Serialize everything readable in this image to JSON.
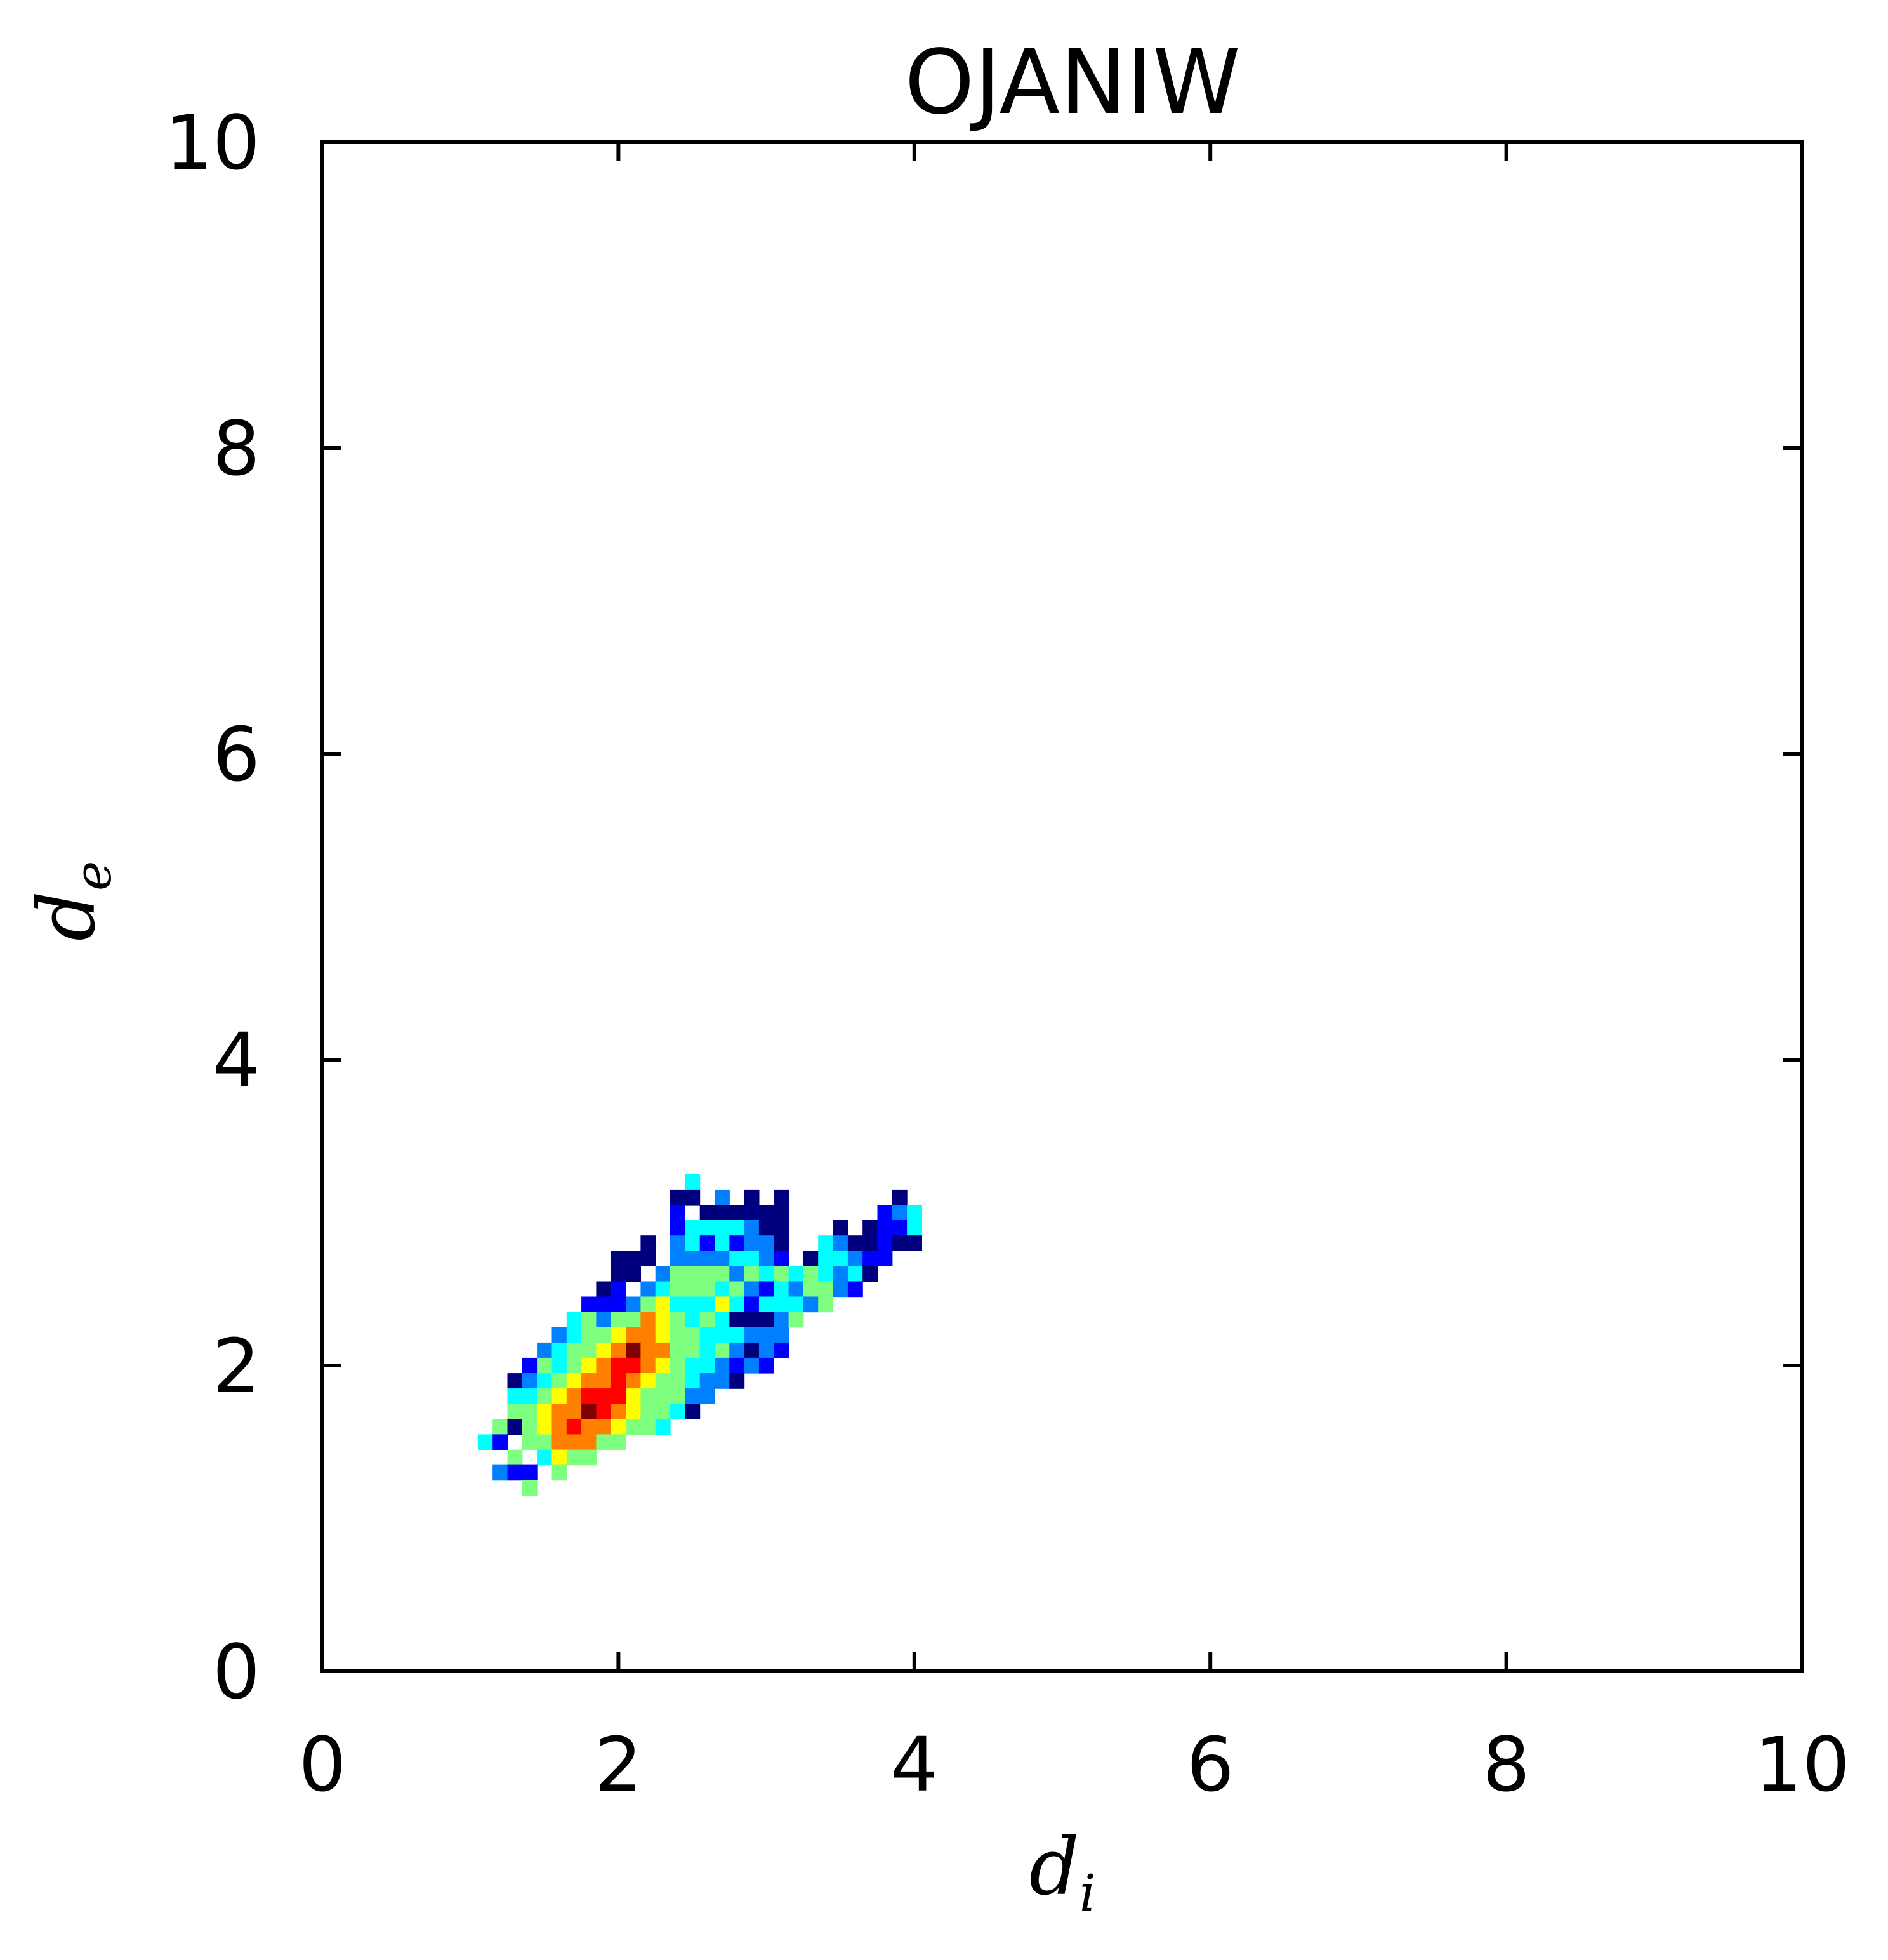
{
  "chart_data": {
    "type": "heatmap",
    "title": "OJANIW",
    "xlabel": {
      "base": "d",
      "subscript": "i"
    },
    "ylabel": {
      "base": "d",
      "subscript": "e"
    },
    "xlim": [
      0,
      10
    ],
    "ylim": [
      0,
      10
    ],
    "xticks": [
      "0",
      "2",
      "4",
      "6",
      "8",
      "10"
    ],
    "yticks": [
      "0",
      "2",
      "4",
      "6",
      "8",
      "10"
    ],
    "grid": false,
    "colormap": "jet",
    "bin_size": 0.1,
    "colorscale": [
      "#00007f",
      "#0000ff",
      "#007fff",
      "#00ffff",
      "#7fff7f",
      "#ffff00",
      "#ff7f00",
      "#ff0000",
      "#7f0000"
    ],
    "cells": [
      {
        "x": 2.5,
        "y": 3.2,
        "v": 0.4
      },
      {
        "x": 2.4,
        "y": 3.1,
        "v": 0.05
      },
      {
        "x": 2.5,
        "y": 3.1,
        "v": 0.05
      },
      {
        "x": 2.7,
        "y": 3.1,
        "v": 0.25
      },
      {
        "x": 2.9,
        "y": 3.1,
        "v": 0.05
      },
      {
        "x": 3.1,
        "y": 3.1,
        "v": 0.05
      },
      {
        "x": 3.9,
        "y": 3.1,
        "v": 0.05
      },
      {
        "x": 2.4,
        "y": 3.0,
        "v": 0.15
      },
      {
        "x": 2.6,
        "y": 3.0,
        "v": 0.05
      },
      {
        "x": 2.7,
        "y": 3.0,
        "v": 0.05
      },
      {
        "x": 2.8,
        "y": 3.0,
        "v": 0.05
      },
      {
        "x": 2.9,
        "y": 3.0,
        "v": 0.05
      },
      {
        "x": 3.0,
        "y": 3.0,
        "v": 0.05
      },
      {
        "x": 3.1,
        "y": 3.0,
        "v": 0.05
      },
      {
        "x": 3.8,
        "y": 3.0,
        "v": 0.15
      },
      {
        "x": 3.9,
        "y": 3.0,
        "v": 0.25
      },
      {
        "x": 4.0,
        "y": 3.0,
        "v": 0.4
      },
      {
        "x": 2.4,
        "y": 2.9,
        "v": 0.15
      },
      {
        "x": 2.5,
        "y": 2.9,
        "v": 0.4
      },
      {
        "x": 2.6,
        "y": 2.9,
        "v": 0.35
      },
      {
        "x": 2.7,
        "y": 2.9,
        "v": 0.35
      },
      {
        "x": 2.8,
        "y": 2.9,
        "v": 0.4
      },
      {
        "x": 2.9,
        "y": 2.9,
        "v": 0.2
      },
      {
        "x": 3.0,
        "y": 2.9,
        "v": 0.05
      },
      {
        "x": 3.1,
        "y": 2.9,
        "v": 0.05
      },
      {
        "x": 3.5,
        "y": 2.9,
        "v": 0.05
      },
      {
        "x": 3.7,
        "y": 2.9,
        "v": 0.05
      },
      {
        "x": 3.8,
        "y": 2.9,
        "v": 0.15
      },
      {
        "x": 3.9,
        "y": 2.9,
        "v": 0.15
      },
      {
        "x": 4.0,
        "y": 2.9,
        "v": 0.4
      },
      {
        "x": 2.2,
        "y": 2.8,
        "v": 0.05
      },
      {
        "x": 2.4,
        "y": 2.8,
        "v": 0.2
      },
      {
        "x": 2.5,
        "y": 2.8,
        "v": 0.4
      },
      {
        "x": 2.6,
        "y": 2.8,
        "v": 0.15
      },
      {
        "x": 2.7,
        "y": 2.8,
        "v": 0.35
      },
      {
        "x": 2.8,
        "y": 2.8,
        "v": 0.15
      },
      {
        "x": 2.9,
        "y": 2.8,
        "v": 0.3
      },
      {
        "x": 3.0,
        "y": 2.8,
        "v": 0.2
      },
      {
        "x": 3.1,
        "y": 2.8,
        "v": 0.05
      },
      {
        "x": 3.4,
        "y": 2.8,
        "v": 0.35
      },
      {
        "x": 3.5,
        "y": 2.8,
        "v": 0.2
      },
      {
        "x": 3.6,
        "y": 2.8,
        "v": 0.05
      },
      {
        "x": 3.7,
        "y": 2.8,
        "v": 0.05
      },
      {
        "x": 3.8,
        "y": 2.8,
        "v": 0.15
      },
      {
        "x": 3.9,
        "y": 2.8,
        "v": 0.05
      },
      {
        "x": 4.0,
        "y": 2.8,
        "v": 0.05
      },
      {
        "x": 2.0,
        "y": 2.7,
        "v": 0.05
      },
      {
        "x": 2.1,
        "y": 2.7,
        "v": 0.05
      },
      {
        "x": 2.2,
        "y": 2.7,
        "v": 0.05
      },
      {
        "x": 2.4,
        "y": 2.7,
        "v": 0.25
      },
      {
        "x": 2.5,
        "y": 2.7,
        "v": 0.3
      },
      {
        "x": 2.6,
        "y": 2.7,
        "v": 0.3
      },
      {
        "x": 2.7,
        "y": 2.7,
        "v": 0.25
      },
      {
        "x": 2.8,
        "y": 2.7,
        "v": 0.4
      },
      {
        "x": 2.9,
        "y": 2.7,
        "v": 0.35
      },
      {
        "x": 3.0,
        "y": 2.7,
        "v": 0.25
      },
      {
        "x": 3.1,
        "y": 2.7,
        "v": 0.15
      },
      {
        "x": 3.3,
        "y": 2.7,
        "v": 0.05
      },
      {
        "x": 3.4,
        "y": 2.7,
        "v": 0.4
      },
      {
        "x": 3.5,
        "y": 2.7,
        "v": 0.35
      },
      {
        "x": 3.6,
        "y": 2.7,
        "v": 0.25
      },
      {
        "x": 3.7,
        "y": 2.7,
        "v": 0.15
      },
      {
        "x": 3.8,
        "y": 2.7,
        "v": 0.15
      },
      {
        "x": 2.0,
        "y": 2.6,
        "v": 0.05
      },
      {
        "x": 2.1,
        "y": 2.6,
        "v": 0.05
      },
      {
        "x": 2.3,
        "y": 2.6,
        "v": 0.25
      },
      {
        "x": 2.4,
        "y": 2.6,
        "v": 0.45
      },
      {
        "x": 2.5,
        "y": 2.6,
        "v": 0.5
      },
      {
        "x": 2.6,
        "y": 2.6,
        "v": 0.45
      },
      {
        "x": 2.7,
        "y": 2.6,
        "v": 0.5
      },
      {
        "x": 2.8,
        "y": 2.6,
        "v": 0.3
      },
      {
        "x": 2.9,
        "y": 2.6,
        "v": 0.45
      },
      {
        "x": 3.0,
        "y": 2.6,
        "v": 0.35
      },
      {
        "x": 3.1,
        "y": 2.6,
        "v": 0.45
      },
      {
        "x": 3.2,
        "y": 2.6,
        "v": 0.4
      },
      {
        "x": 3.3,
        "y": 2.6,
        "v": 0.45
      },
      {
        "x": 3.4,
        "y": 2.6,
        "v": 0.35
      },
      {
        "x": 3.5,
        "y": 2.6,
        "v": 0.3
      },
      {
        "x": 3.6,
        "y": 2.6,
        "v": 0.35
      },
      {
        "x": 3.7,
        "y": 2.6,
        "v": 0.05
      },
      {
        "x": 1.9,
        "y": 2.5,
        "v": 0.05
      },
      {
        "x": 2.0,
        "y": 2.5,
        "v": 0.15
      },
      {
        "x": 2.2,
        "y": 2.5,
        "v": 0.3
      },
      {
        "x": 2.3,
        "y": 2.5,
        "v": 0.35
      },
      {
        "x": 2.4,
        "y": 2.5,
        "v": 0.45
      },
      {
        "x": 2.5,
        "y": 2.5,
        "v": 0.55
      },
      {
        "x": 2.6,
        "y": 2.5,
        "v": 0.5
      },
      {
        "x": 2.7,
        "y": 2.5,
        "v": 0.4
      },
      {
        "x": 2.8,
        "y": 2.5,
        "v": 0.5
      },
      {
        "x": 2.9,
        "y": 2.5,
        "v": 0.3
      },
      {
        "x": 3.0,
        "y": 2.5,
        "v": 0.15
      },
      {
        "x": 3.1,
        "y": 2.5,
        "v": 0.35
      },
      {
        "x": 3.2,
        "y": 2.5,
        "v": 0.3
      },
      {
        "x": 3.3,
        "y": 2.5,
        "v": 0.5
      },
      {
        "x": 3.4,
        "y": 2.5,
        "v": 0.45
      },
      {
        "x": 3.5,
        "y": 2.5,
        "v": 0.25
      },
      {
        "x": 3.6,
        "y": 2.5,
        "v": 0.15
      },
      {
        "x": 1.8,
        "y": 2.4,
        "v": 0.15
      },
      {
        "x": 1.9,
        "y": 2.4,
        "v": 0.15
      },
      {
        "x": 2.0,
        "y": 2.4,
        "v": 0.15
      },
      {
        "x": 2.1,
        "y": 2.4,
        "v": 0.3
      },
      {
        "x": 2.2,
        "y": 2.4,
        "v": 0.45
      },
      {
        "x": 2.3,
        "y": 2.4,
        "v": 0.6
      },
      {
        "x": 2.4,
        "y": 2.4,
        "v": 0.4
      },
      {
        "x": 2.5,
        "y": 2.4,
        "v": 0.4
      },
      {
        "x": 2.6,
        "y": 2.4,
        "v": 0.35
      },
      {
        "x": 2.7,
        "y": 2.4,
        "v": 0.6
      },
      {
        "x": 2.8,
        "y": 2.4,
        "v": 0.4
      },
      {
        "x": 2.9,
        "y": 2.4,
        "v": 0.15
      },
      {
        "x": 3.0,
        "y": 2.4,
        "v": 0.35
      },
      {
        "x": 3.1,
        "y": 2.4,
        "v": 0.4
      },
      {
        "x": 3.2,
        "y": 2.4,
        "v": 0.35
      },
      {
        "x": 3.3,
        "y": 2.4,
        "v": 0.25
      },
      {
        "x": 3.4,
        "y": 2.4,
        "v": 0.45
      },
      {
        "x": 1.7,
        "y": 2.3,
        "v": 0.35
      },
      {
        "x": 1.8,
        "y": 2.3,
        "v": 0.45
      },
      {
        "x": 1.9,
        "y": 2.3,
        "v": 0.25
      },
      {
        "x": 2.0,
        "y": 2.3,
        "v": 0.5
      },
      {
        "x": 2.1,
        "y": 2.3,
        "v": 0.55
      },
      {
        "x": 2.2,
        "y": 2.3,
        "v": 0.7
      },
      {
        "x": 2.3,
        "y": 2.3,
        "v": 0.6
      },
      {
        "x": 2.4,
        "y": 2.3,
        "v": 0.45
      },
      {
        "x": 2.5,
        "y": 2.3,
        "v": 0.4
      },
      {
        "x": 2.6,
        "y": 2.3,
        "v": 0.45
      },
      {
        "x": 2.7,
        "y": 2.3,
        "v": 0.35
      },
      {
        "x": 2.8,
        "y": 2.3,
        "v": 0.05
      },
      {
        "x": 2.9,
        "y": 2.3,
        "v": 0.05
      },
      {
        "x": 3.0,
        "y": 2.3,
        "v": 0.05
      },
      {
        "x": 3.1,
        "y": 2.3,
        "v": 0.25
      },
      {
        "x": 3.2,
        "y": 2.3,
        "v": 0.45
      },
      {
        "x": 1.6,
        "y": 2.2,
        "v": 0.25
      },
      {
        "x": 1.7,
        "y": 2.2,
        "v": 0.35
      },
      {
        "x": 1.8,
        "y": 2.2,
        "v": 0.45
      },
      {
        "x": 1.9,
        "y": 2.2,
        "v": 0.5
      },
      {
        "x": 2.0,
        "y": 2.2,
        "v": 0.65
      },
      {
        "x": 2.1,
        "y": 2.2,
        "v": 0.8
      },
      {
        "x": 2.2,
        "y": 2.2,
        "v": 0.75
      },
      {
        "x": 2.3,
        "y": 2.2,
        "v": 0.6
      },
      {
        "x": 2.4,
        "y": 2.2,
        "v": 0.55
      },
      {
        "x": 2.5,
        "y": 2.2,
        "v": 0.45
      },
      {
        "x": 2.6,
        "y": 2.2,
        "v": 0.35
      },
      {
        "x": 2.7,
        "y": 2.2,
        "v": 0.35
      },
      {
        "x": 2.8,
        "y": 2.2,
        "v": 0.35
      },
      {
        "x": 2.9,
        "y": 2.2,
        "v": 0.2
      },
      {
        "x": 3.0,
        "y": 2.2,
        "v": 0.25
      },
      {
        "x": 3.1,
        "y": 2.2,
        "v": 0.2
      },
      {
        "x": 1.5,
        "y": 2.1,
        "v": 0.2
      },
      {
        "x": 1.6,
        "y": 2.1,
        "v": 0.35
      },
      {
        "x": 1.7,
        "y": 2.1,
        "v": 0.5
      },
      {
        "x": 1.8,
        "y": 2.1,
        "v": 0.55
      },
      {
        "x": 1.9,
        "y": 2.1,
        "v": 0.65
      },
      {
        "x": 2.0,
        "y": 2.1,
        "v": 0.75
      },
      {
        "x": 2.1,
        "y": 2.1,
        "v": 0.95
      },
      {
        "x": 2.2,
        "y": 2.1,
        "v": 0.8
      },
      {
        "x": 2.3,
        "y": 2.1,
        "v": 0.7
      },
      {
        "x": 2.4,
        "y": 2.1,
        "v": 0.55
      },
      {
        "x": 2.5,
        "y": 2.1,
        "v": 0.45
      },
      {
        "x": 2.6,
        "y": 2.1,
        "v": 0.35
      },
      {
        "x": 2.7,
        "y": 2.1,
        "v": 0.5
      },
      {
        "x": 2.8,
        "y": 2.1,
        "v": 0.2
      },
      {
        "x": 2.9,
        "y": 2.1,
        "v": 0.05
      },
      {
        "x": 3.0,
        "y": 2.1,
        "v": 0.2
      },
      {
        "x": 3.1,
        "y": 2.1,
        "v": 0.15
      },
      {
        "x": 1.4,
        "y": 2.0,
        "v": 0.15
      },
      {
        "x": 1.5,
        "y": 2.0,
        "v": 0.45
      },
      {
        "x": 1.6,
        "y": 2.0,
        "v": 0.35
      },
      {
        "x": 1.7,
        "y": 2.0,
        "v": 0.55
      },
      {
        "x": 1.8,
        "y": 2.0,
        "v": 0.65
      },
      {
        "x": 1.9,
        "y": 2.0,
        "v": 0.75
      },
      {
        "x": 2.0,
        "y": 2.0,
        "v": 0.85
      },
      {
        "x": 2.1,
        "y": 2.0,
        "v": 0.9
      },
      {
        "x": 2.2,
        "y": 2.0,
        "v": 0.7
      },
      {
        "x": 2.3,
        "y": 2.0,
        "v": 0.6
      },
      {
        "x": 2.4,
        "y": 2.0,
        "v": 0.45
      },
      {
        "x": 2.5,
        "y": 2.0,
        "v": 0.4
      },
      {
        "x": 2.6,
        "y": 2.0,
        "v": 0.35
      },
      {
        "x": 2.7,
        "y": 2.0,
        "v": 0.3
      },
      {
        "x": 2.8,
        "y": 2.0,
        "v": 0.15
      },
      {
        "x": 2.9,
        "y": 2.0,
        "v": 0.25
      },
      {
        "x": 3.0,
        "y": 2.0,
        "v": 0.15
      },
      {
        "x": 1.3,
        "y": 1.9,
        "v": 0.05
      },
      {
        "x": 1.4,
        "y": 1.9,
        "v": 0.3
      },
      {
        "x": 1.5,
        "y": 1.9,
        "v": 0.4
      },
      {
        "x": 1.6,
        "y": 1.9,
        "v": 0.45
      },
      {
        "x": 1.7,
        "y": 1.9,
        "v": 0.6
      },
      {
        "x": 1.8,
        "y": 1.9,
        "v": 0.75
      },
      {
        "x": 1.9,
        "y": 1.9,
        "v": 0.8
      },
      {
        "x": 2.0,
        "y": 1.9,
        "v": 0.9
      },
      {
        "x": 2.1,
        "y": 1.9,
        "v": 0.8
      },
      {
        "x": 2.2,
        "y": 1.9,
        "v": 0.65
      },
      {
        "x": 2.3,
        "y": 1.9,
        "v": 0.5
      },
      {
        "x": 2.4,
        "y": 1.9,
        "v": 0.45
      },
      {
        "x": 2.5,
        "y": 1.9,
        "v": 0.4
      },
      {
        "x": 2.6,
        "y": 1.9,
        "v": 0.3
      },
      {
        "x": 2.7,
        "y": 1.9,
        "v": 0.2
      },
      {
        "x": 2.8,
        "y": 1.9,
        "v": 0.05
      },
      {
        "x": 1.3,
        "y": 1.8,
        "v": 0.4
      },
      {
        "x": 1.4,
        "y": 1.8,
        "v": 0.4
      },
      {
        "x": 1.5,
        "y": 1.8,
        "v": 0.5
      },
      {
        "x": 1.6,
        "y": 1.8,
        "v": 0.6
      },
      {
        "x": 1.7,
        "y": 1.8,
        "v": 0.75
      },
      {
        "x": 1.8,
        "y": 1.8,
        "v": 0.85
      },
      {
        "x": 1.9,
        "y": 1.8,
        "v": 0.9
      },
      {
        "x": 2.0,
        "y": 1.8,
        "v": 0.85
      },
      {
        "x": 2.1,
        "y": 1.8,
        "v": 0.65
      },
      {
        "x": 2.2,
        "y": 1.8,
        "v": 0.55
      },
      {
        "x": 2.3,
        "y": 1.8,
        "v": 0.5
      },
      {
        "x": 2.4,
        "y": 1.8,
        "v": 0.45
      },
      {
        "x": 2.5,
        "y": 1.8,
        "v": 0.3
      },
      {
        "x": 2.6,
        "y": 1.8,
        "v": 0.25
      },
      {
        "x": 1.3,
        "y": 1.7,
        "v": 0.45
      },
      {
        "x": 1.4,
        "y": 1.7,
        "v": 0.45
      },
      {
        "x": 1.5,
        "y": 1.7,
        "v": 0.6
      },
      {
        "x": 1.6,
        "y": 1.7,
        "v": 0.7
      },
      {
        "x": 1.7,
        "y": 1.7,
        "v": 0.8
      },
      {
        "x": 1.8,
        "y": 1.7,
        "v": 0.95
      },
      {
        "x": 1.9,
        "y": 1.7,
        "v": 0.9
      },
      {
        "x": 2.0,
        "y": 1.7,
        "v": 0.7
      },
      {
        "x": 2.1,
        "y": 1.7,
        "v": 0.6
      },
      {
        "x": 2.2,
        "y": 1.7,
        "v": 0.5
      },
      {
        "x": 2.3,
        "y": 1.7,
        "v": 0.45
      },
      {
        "x": 2.4,
        "y": 1.7,
        "v": 0.35
      },
      {
        "x": 2.5,
        "y": 1.7,
        "v": 0.05
      },
      {
        "x": 1.2,
        "y": 1.6,
        "v": 0.45
      },
      {
        "x": 1.3,
        "y": 1.6,
        "v": 0.05
      },
      {
        "x": 1.4,
        "y": 1.6,
        "v": 0.55
      },
      {
        "x": 1.5,
        "y": 1.6,
        "v": 0.65
      },
      {
        "x": 1.6,
        "y": 1.6,
        "v": 0.75
      },
      {
        "x": 1.7,
        "y": 1.6,
        "v": 0.85
      },
      {
        "x": 1.8,
        "y": 1.6,
        "v": 0.8
      },
      {
        "x": 1.9,
        "y": 1.6,
        "v": 0.75
      },
      {
        "x": 2.0,
        "y": 1.6,
        "v": 0.6
      },
      {
        "x": 2.1,
        "y": 1.6,
        "v": 0.5
      },
      {
        "x": 2.2,
        "y": 1.6,
        "v": 0.45
      },
      {
        "x": 2.3,
        "y": 1.6,
        "v": 0.35
      },
      {
        "x": 1.1,
        "y": 1.5,
        "v": 0.35
      },
      {
        "x": 1.2,
        "y": 1.5,
        "v": 0.15
      },
      {
        "x": 1.4,
        "y": 1.5,
        "v": 0.55
      },
      {
        "x": 1.5,
        "y": 1.5,
        "v": 0.45
      },
      {
        "x": 1.6,
        "y": 1.5,
        "v": 0.7
      },
      {
        "x": 1.7,
        "y": 1.5,
        "v": 0.7
      },
      {
        "x": 1.8,
        "y": 1.5,
        "v": 0.7
      },
      {
        "x": 1.9,
        "y": 1.5,
        "v": 0.55
      },
      {
        "x": 2.0,
        "y": 1.5,
        "v": 0.45
      },
      {
        "x": 1.3,
        "y": 1.4,
        "v": 0.55
      },
      {
        "x": 1.5,
        "y": 1.4,
        "v": 0.35
      },
      {
        "x": 1.6,
        "y": 1.4,
        "v": 0.65
      },
      {
        "x": 1.7,
        "y": 1.4,
        "v": 0.55
      },
      {
        "x": 1.8,
        "y": 1.4,
        "v": 0.45
      },
      {
        "x": 1.2,
        "y": 1.3,
        "v": 0.2
      },
      {
        "x": 1.3,
        "y": 1.3,
        "v": 0.15
      },
      {
        "x": 1.4,
        "y": 1.3,
        "v": 0.15
      },
      {
        "x": 1.6,
        "y": 1.3,
        "v": 0.45
      },
      {
        "x": 1.4,
        "y": 1.2,
        "v": 0.45
      }
    ]
  }
}
